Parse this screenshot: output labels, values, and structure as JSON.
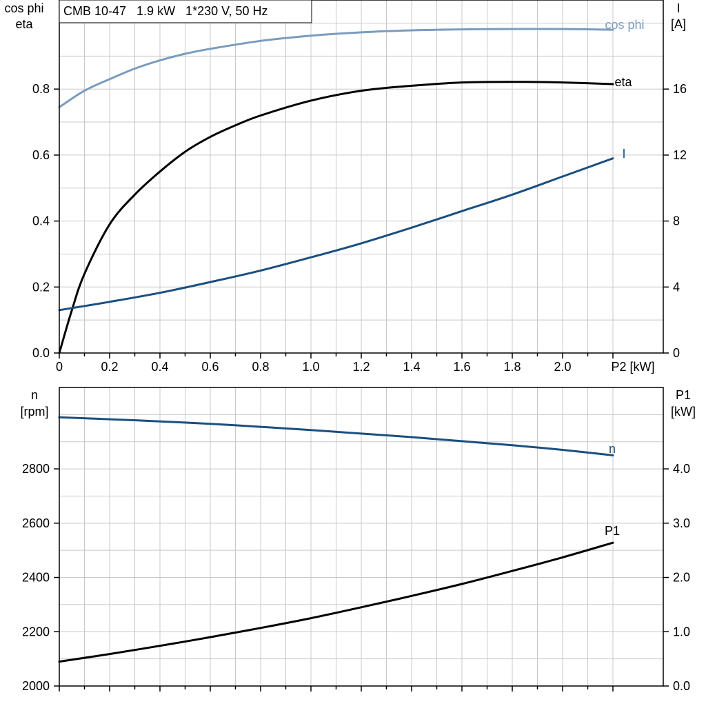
{
  "chart_data": [
    {
      "type": "line",
      "title": "CMB 10-47   1.9 kW   1*230 V, 50 Hz",
      "xlabel": "P2 [kW]",
      "x_ticks": [
        "0",
        "0.2",
        "0.4",
        "0.6",
        "0.8",
        "1.0",
        "1.2",
        "1.4",
        "1.6",
        "1.8",
        "2.0"
      ],
      "xlim": [
        0,
        2.4
      ],
      "ylabel_left": [
        "cos phi",
        "eta"
      ],
      "ylim_left": [
        0,
        1.07
      ],
      "y_ticks_left": [
        "0.0",
        "0.2",
        "0.4",
        "0.6",
        "0.8"
      ],
      "ylabel_right": [
        "I",
        "[A]"
      ],
      "ylim_right": [
        0,
        21.4
      ],
      "y_ticks_right": [
        "0",
        "4",
        "8",
        "12",
        "16"
      ],
      "grid": true,
      "series": [
        {
          "name": "cos phi",
          "axis": "left",
          "color": "#7a9cbd",
          "x": [
            0,
            0.1,
            0.2,
            0.3,
            0.4,
            0.5,
            0.6,
            0.8,
            1.0,
            1.2,
            1.4,
            1.6,
            1.8,
            2.0,
            2.2
          ],
          "y": [
            0.745,
            0.795,
            0.83,
            0.862,
            0.887,
            0.907,
            0.922,
            0.946,
            0.962,
            0.972,
            0.978,
            0.981,
            0.982,
            0.982,
            0.98
          ]
        },
        {
          "name": "eta",
          "axis": "left",
          "color": "#000000",
          "x": [
            0,
            0.05,
            0.1,
            0.2,
            0.3,
            0.4,
            0.5,
            0.6,
            0.7,
            0.8,
            1.0,
            1.2,
            1.4,
            1.6,
            1.8,
            2.0,
            2.2
          ],
          "y": [
            0.0,
            0.13,
            0.24,
            0.39,
            0.48,
            0.55,
            0.61,
            0.655,
            0.69,
            0.72,
            0.765,
            0.795,
            0.81,
            0.82,
            0.822,
            0.82,
            0.815
          ]
        },
        {
          "name": "I",
          "axis": "right",
          "color": "#1a4f80",
          "x": [
            0,
            0.2,
            0.4,
            0.6,
            0.8,
            1.0,
            1.2,
            1.4,
            1.6,
            1.8,
            2.0,
            2.2
          ],
          "y": [
            2.6,
            3.1,
            3.65,
            4.3,
            5.0,
            5.8,
            6.65,
            7.6,
            8.6,
            9.6,
            10.7,
            11.8
          ]
        }
      ]
    },
    {
      "type": "line",
      "xlabel": "",
      "xlim": [
        0,
        2.4
      ],
      "ylabel_left": [
        "n",
        "[rpm]"
      ],
      "ylim_left": [
        2000,
        3100
      ],
      "y_ticks_left": [
        "2000",
        "2200",
        "2400",
        "2600",
        "2800"
      ],
      "ylabel_right": [
        "P1",
        "[kW]"
      ],
      "ylim_right": [
        0,
        5.5
      ],
      "y_ticks_right": [
        "0.0",
        "1.0",
        "2.0",
        "3.0",
        "4.0"
      ],
      "grid": true,
      "series": [
        {
          "name": "n",
          "axis": "left",
          "color": "#1a4f80",
          "x": [
            0,
            0.2,
            0.4,
            0.6,
            0.8,
            1.0,
            1.2,
            1.4,
            1.6,
            1.8,
            2.0,
            2.2
          ],
          "y": [
            2990,
            2983,
            2975,
            2966,
            2955,
            2943,
            2930,
            2917,
            2902,
            2887,
            2870,
            2850
          ]
        },
        {
          "name": "P1",
          "axis": "right",
          "color": "#000000",
          "x": [
            0,
            0.2,
            0.4,
            0.6,
            0.8,
            1.0,
            1.2,
            1.4,
            1.6,
            1.8,
            2.0,
            2.2
          ],
          "y": [
            0.45,
            0.59,
            0.74,
            0.9,
            1.07,
            1.25,
            1.45,
            1.66,
            1.88,
            2.12,
            2.37,
            2.64
          ]
        }
      ]
    }
  ]
}
